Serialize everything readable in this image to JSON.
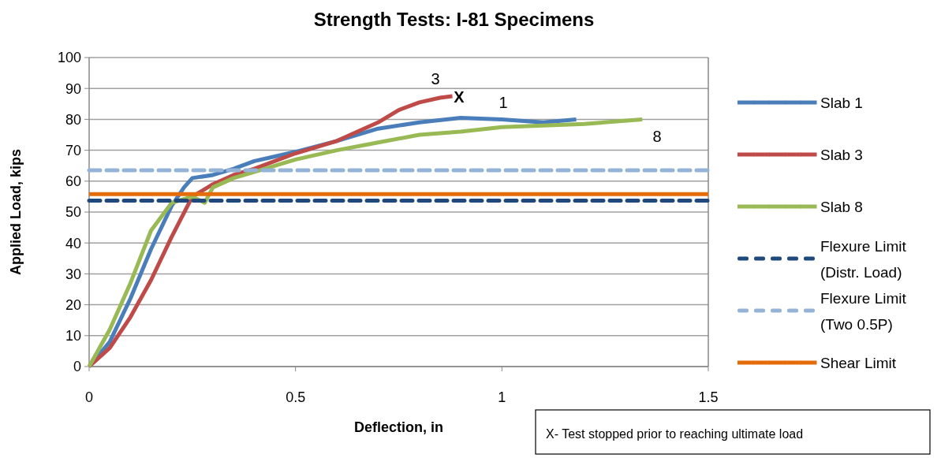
{
  "chart_data": {
    "type": "line",
    "title": "Strength Tests: I-81 Specimens",
    "xlabel": "Deflection, in",
    "ylabel": "Applied Load, kips",
    "xlim": [
      0,
      1.5
    ],
    "xticks": [
      0,
      0.5,
      1,
      1.5
    ],
    "ylim": [
      0,
      100
    ],
    "yticks": [
      0,
      10,
      20,
      30,
      40,
      50,
      60,
      70,
      80,
      90,
      100
    ],
    "grid": "y",
    "legend": "right",
    "marker": "none",
    "series": [
      {
        "name": "Slab 1",
        "color": "#4a7ebb",
        "x": [
          0,
          0.05,
          0.1,
          0.15,
          0.2,
          0.23,
          0.25,
          0.3,
          0.35,
          0.4,
          0.45,
          0.5,
          0.6,
          0.7,
          0.8,
          0.9,
          1.0,
          1.1,
          1.18
        ],
        "values": [
          0,
          8,
          22,
          38,
          52,
          58,
          61,
          62,
          64,
          66.5,
          68,
          69.5,
          73,
          77,
          79,
          80.5,
          80,
          79,
          80
        ]
      },
      {
        "name": "Slab 3",
        "color": "#be4b48",
        "x": [
          0,
          0.05,
          0.1,
          0.15,
          0.2,
          0.25,
          0.3,
          0.35,
          0.4,
          0.5,
          0.6,
          0.7,
          0.75,
          0.8,
          0.85,
          0.88
        ],
        "values": [
          0,
          6,
          16,
          28,
          42,
          55,
          59,
          62,
          64,
          69,
          73,
          79,
          83,
          85.5,
          87,
          87.5
        ]
      },
      {
        "name": "Slab 8",
        "color": "#98b954",
        "x": [
          0,
          0.05,
          0.1,
          0.15,
          0.2,
          0.25,
          0.28,
          0.3,
          0.35,
          0.4,
          0.5,
          0.6,
          0.7,
          0.8,
          0.9,
          1.0,
          1.1,
          1.2,
          1.34
        ],
        "values": [
          0,
          12,
          27,
          44,
          53,
          55,
          53,
          58,
          61,
          63,
          67,
          70,
          72.5,
          75,
          76,
          77.5,
          78,
          78.5,
          80
        ]
      },
      {
        "name": "Flexure Limit (Distr. Load)",
        "color": "#1f497d",
        "line_style": "dashed",
        "x": [
          0,
          1.5
        ],
        "values": [
          53.7,
          53.7
        ]
      },
      {
        "name": "Flexure Limit (Two 0.5P)",
        "color": "#95b3d7",
        "line_style": "dashed",
        "x": [
          0,
          1.5
        ],
        "values": [
          63.5,
          63.5
        ]
      },
      {
        "name": "Shear Limit",
        "color": "#e46c0a",
        "line_style": "solid",
        "x": [
          0,
          1.5
        ],
        "values": [
          55.8,
          55.8
        ]
      }
    ],
    "annotations": [
      "3",
      "X",
      "1",
      "8",
      "X- Test stopped prior to reaching ultimate load"
    ]
  }
}
